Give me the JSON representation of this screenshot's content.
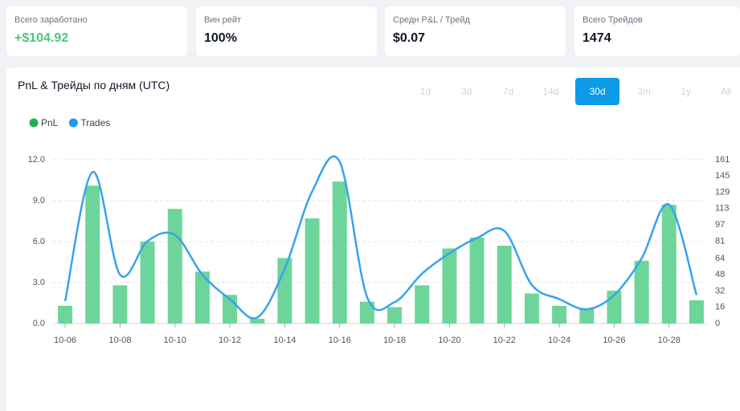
{
  "stats": [
    {
      "label": "Всего заработано",
      "value": "+$104.92"
    },
    {
      "label": "Вин рейт",
      "value": "100%"
    },
    {
      "label": "Средн P&L / Трейд",
      "value": "$0.07"
    },
    {
      "label": "Всего Трейдов",
      "value": "1474"
    }
  ],
  "panel": {
    "title": "PnL & Трейды по дням (UTC)",
    "ranges": [
      "1d",
      "3d",
      "7d",
      "14d",
      "30d",
      "3m",
      "1y",
      "All"
    ],
    "active_range": "30d"
  },
  "chart_data": {
    "type": "bar",
    "categories": [
      "10-06",
      null,
      "10-08",
      null,
      "10-10",
      null,
      "10-12",
      null,
      "10-14",
      null,
      "10-16",
      null,
      "10-18",
      null,
      "10-20",
      null,
      "10-22",
      null,
      "10-24",
      null,
      "10-26",
      null,
      "10-28",
      null
    ],
    "series": [
      {
        "name": "PnL",
        "type": "bar",
        "color": "#6dd59a",
        "legend_color": "#22b14c",
        "values": [
          1.3,
          10.1,
          2.8,
          6.0,
          8.4,
          3.8,
          2.1,
          0.35,
          4.8,
          7.7,
          10.4,
          1.6,
          1.2,
          2.8,
          5.5,
          6.3,
          5.7,
          2.2,
          1.3,
          1.1,
          2.4,
          4.6,
          8.7,
          1.7
        ]
      },
      {
        "name": "Trades",
        "type": "line",
        "axis": "y2",
        "color": "#36a3ef",
        "legend_color": "#1a9bf0",
        "values": [
          22,
          149,
          48,
          81,
          87,
          48,
          24,
          6,
          54,
          130,
          159,
          26,
          21,
          49,
          69,
          84,
          91,
          38,
          24,
          14,
          28,
          64,
          117,
          28
        ]
      }
    ],
    "ylim": [
      0,
      12
    ],
    "yticks": [
      {
        "value": 0,
        "label": "0.0"
      },
      {
        "value": 3,
        "label": "3.0"
      },
      {
        "value": 6,
        "label": "6.0"
      },
      {
        "value": 9,
        "label": "9.0"
      },
      {
        "value": 12,
        "label": "12.0"
      }
    ],
    "y2lim": [
      0,
      161
    ],
    "y2ticks": [
      0,
      16,
      32,
      48,
      64,
      81,
      97,
      113,
      129,
      145,
      161
    ],
    "grid": true
  }
}
